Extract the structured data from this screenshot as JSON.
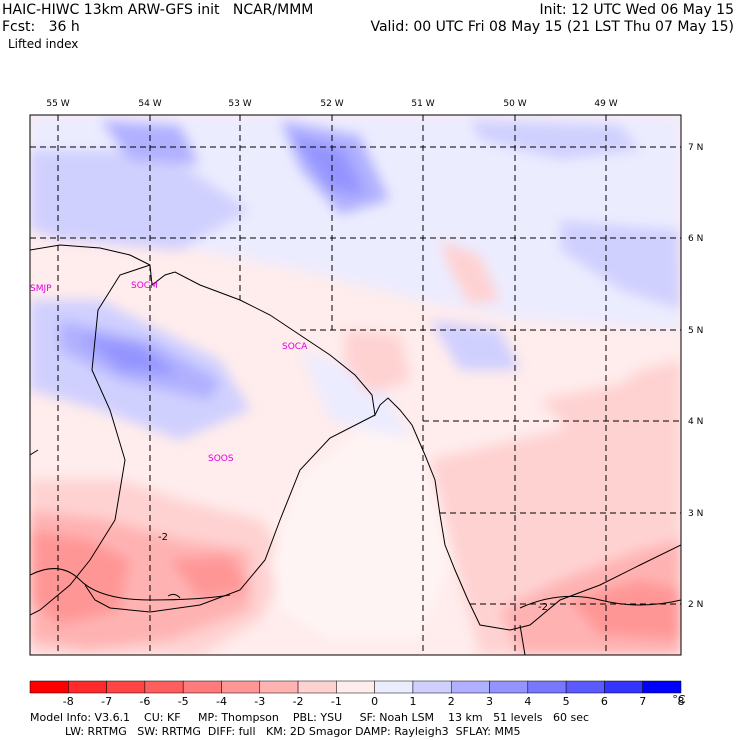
{
  "header": {
    "model": "HAIC-HIWC 13km ARW-GFS init   NCAR/MMM",
    "init": "Init: 12 UTC Wed 06 May 15",
    "fcst": "Fcst:   36 h",
    "valid": "Valid: 00 UTC Fri 08 May 15 (21 LST Thu 07 May 15)",
    "field": "Lifted index"
  },
  "map": {
    "lon_labels": [
      "55 W",
      "54 W",
      "53 W",
      "52 W",
      "51 W",
      "50 W",
      "49 W"
    ],
    "lat_labels": [
      "7 N",
      "6 N",
      "5 N",
      "4 N",
      "3 N",
      "2 N"
    ],
    "stations": [
      "SMJP",
      "SOCM",
      "SOCA",
      "SOOS"
    ],
    "contour_labels": [
      "-2",
      "-2"
    ]
  },
  "colorbar": {
    "labels": [
      "-8",
      "-7",
      "-6",
      "-5",
      "-4",
      "-3",
      "-2",
      "-1",
      "0",
      "1",
      "2",
      "3",
      "4",
      "5",
      "6",
      "7",
      "8"
    ],
    "unit": "°C",
    "colors": [
      "#ff0000",
      "#ff2a2a",
      "#ff4444",
      "#ff5e5e",
      "#ff7a7a",
      "#ff9696",
      "#ffb2b2",
      "#ffd2d2",
      "#ffecec",
      "#ececff",
      "#d0d0ff",
      "#b0b0ff",
      "#9494ff",
      "#7878ff",
      "#5a5aff",
      "#3434ff",
      "#0000ff"
    ]
  },
  "footer": {
    "line1": "Model Info: V3.6.1    CU: KF     MP: Thompson    PBL: YSU     SF: Noah LSM    13 km   51 levels   60 sec",
    "line2": "          LW: RRTMG   SW: RRTMG  DIFF: full   KM: 2D Smagor DAMP: Rayleigh3  SFLAY: MM5"
  }
}
